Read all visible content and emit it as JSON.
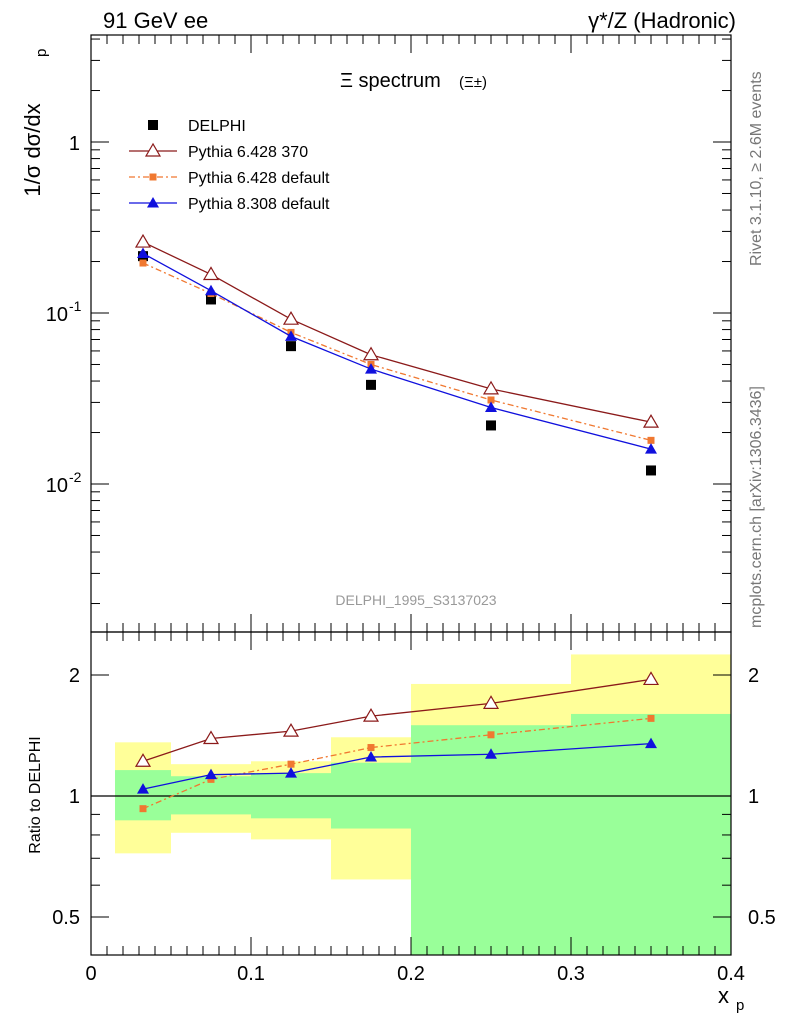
{
  "header": {
    "left": "91 GeV ee",
    "right": "γ*/Z (Hadronic)"
  },
  "sidebar": {
    "rivet": "Rivet 3.1.10, ≥ 2.6M events",
    "source": "mcplots.cern.ch [arXiv:1306.3436]"
  },
  "chart_data": {
    "type": "line",
    "title": "Ξ spectrum",
    "title_suffix": "(Ξ±)",
    "watermark": "DELPHI_1995_S3137023",
    "xlabel": "x",
    "xlabel_sub": "p",
    "ylabel": "1/σ dσ/dx",
    "ylabel_sub": "p",
    "ratio_ylabel": "Ratio to DELPHI",
    "xlim": [
      0,
      0.4
    ],
    "ylim": [
      0.0015,
      4.0
    ],
    "yscale": "log",
    "ratio_ylim": [
      0.4,
      2.3
    ],
    "xticks": [
      "0",
      "0.1",
      "0.2",
      "0.3",
      "0.4"
    ],
    "yticks_main": [
      "10",
      "10",
      "1"
    ],
    "ytick_main_exp": [
      "-2",
      "-1",
      ""
    ],
    "yticks_ratio": [
      "0.5",
      "1",
      "2"
    ],
    "bin_edges": [
      0.015,
      0.05,
      0.1,
      0.15,
      0.2,
      0.3,
      0.4
    ],
    "x": [
      0.0325,
      0.075,
      0.125,
      0.175,
      0.25,
      0.35
    ],
    "series": [
      {
        "name": "DELPHI",
        "values": [
          0.215,
          0.12,
          0.064,
          0.038,
          0.022,
          0.012
        ],
        "color": "#000000",
        "marker": "square-filled"
      },
      {
        "name": "Pythia 6.428 370",
        "values": [
          0.26,
          0.168,
          0.092,
          0.057,
          0.036,
          0.023
        ],
        "color": "#8b1a1a",
        "marker": "triangle-open"
      },
      {
        "name": "Pythia 6.428 default",
        "values": [
          0.196,
          0.13,
          0.077,
          0.05,
          0.031,
          0.018
        ],
        "color": "#f07830",
        "marker": "square-small"
      },
      {
        "name": "Pythia 8.308 default",
        "values": [
          0.223,
          0.135,
          0.073,
          0.047,
          0.028,
          0.016
        ],
        "color": "#1010dd",
        "marker": "triangle-filled"
      }
    ],
    "ratios": [
      {
        "name": "Pythia 6.428 370",
        "values": [
          1.22,
          1.39,
          1.45,
          1.58,
          1.7,
          1.95
        ]
      },
      {
        "name": "Pythia 6.428 default",
        "values": [
          0.93,
          1.1,
          1.2,
          1.32,
          1.42,
          1.56
        ]
      },
      {
        "name": "Pythia 8.308 default",
        "values": [
          1.04,
          1.13,
          1.14,
          1.25,
          1.27,
          1.35
        ]
      }
    ],
    "bands": {
      "green_color": "#99ff99",
      "yellow_color": "#ffff99",
      "green": [
        [
          0.87,
          1.16
        ],
        [
          0.9,
          1.12
        ],
        [
          0.88,
          1.14
        ],
        [
          0.83,
          1.21
        ],
        [
          0.4,
          1.5
        ],
        [
          0.4,
          1.6
        ]
      ],
      "yellow": [
        [
          0.72,
          1.36
        ],
        [
          0.81,
          1.2
        ],
        [
          0.78,
          1.22
        ],
        [
          0.62,
          1.4
        ],
        [
          0.55,
          1.9
        ],
        [
          0.4,
          2.25
        ]
      ]
    }
  }
}
